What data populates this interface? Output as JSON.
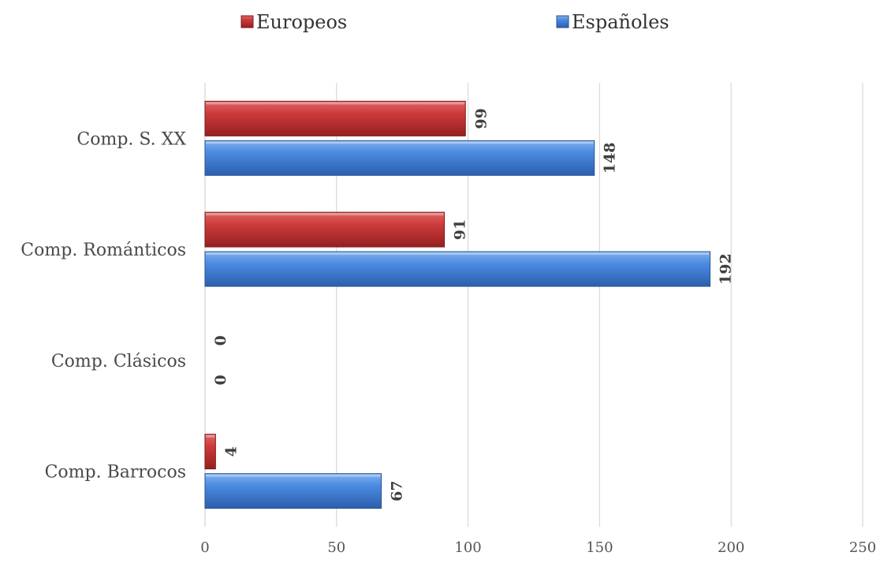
{
  "chart_data": {
    "type": "bar",
    "orientation": "horizontal",
    "categories": [
      "Comp. Barrocos",
      "Comp. Clásicos",
      "Comp. Románticos",
      "Comp. S. XX"
    ],
    "series": [
      {
        "name": "Españoles",
        "values": [
          67,
          0,
          192,
          148
        ],
        "color": "#3f7fd3"
      },
      {
        "name": "Europeos",
        "values": [
          4,
          0,
          91,
          99
        ],
        "color": "#c83232"
      }
    ],
    "xlim": [
      0,
      250
    ],
    "xticks": [
      0,
      50,
      100,
      150,
      200,
      250
    ],
    "grid": true,
    "legend_position": "top",
    "data_labels": true,
    "title": "",
    "xlabel": "",
    "ylabel": ""
  }
}
